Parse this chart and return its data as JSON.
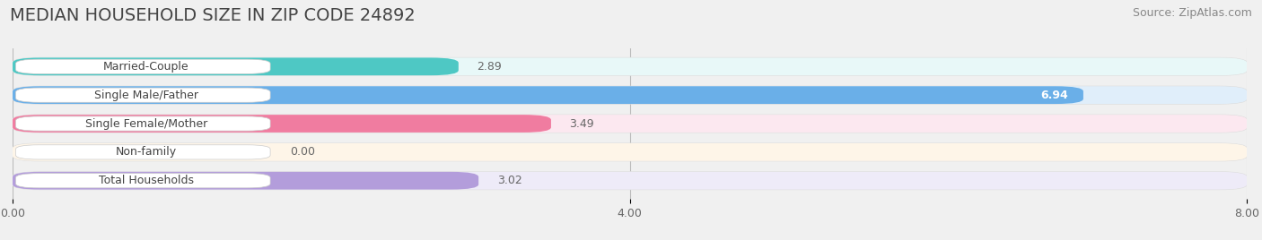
{
  "title": "MEDIAN HOUSEHOLD SIZE IN ZIP CODE 24892",
  "source": "Source: ZipAtlas.com",
  "categories": [
    "Married-Couple",
    "Single Male/Father",
    "Single Female/Mother",
    "Non-family",
    "Total Households"
  ],
  "values": [
    2.89,
    6.94,
    3.49,
    0.0,
    3.02
  ],
  "bar_colors": [
    "#4ec8c4",
    "#6aafe8",
    "#f07ca0",
    "#f5c99a",
    "#b39ddb"
  ],
  "bar_bg_colors": [
    "#e8f8f8",
    "#e0eefa",
    "#fce8f0",
    "#fef5e8",
    "#eeebf8"
  ],
  "xlim": [
    0,
    8.0
  ],
  "xticks": [
    0.0,
    4.0,
    8.0
  ],
  "xtick_labels": [
    "0.00",
    "4.00",
    "8.00"
  ],
  "title_fontsize": 14,
  "source_fontsize": 9,
  "label_fontsize": 9,
  "value_fontsize": 9,
  "bar_height": 0.62,
  "background_color": "#f0f0f0",
  "value_inside_color": "#ffffff",
  "value_outside_color": "#666666"
}
